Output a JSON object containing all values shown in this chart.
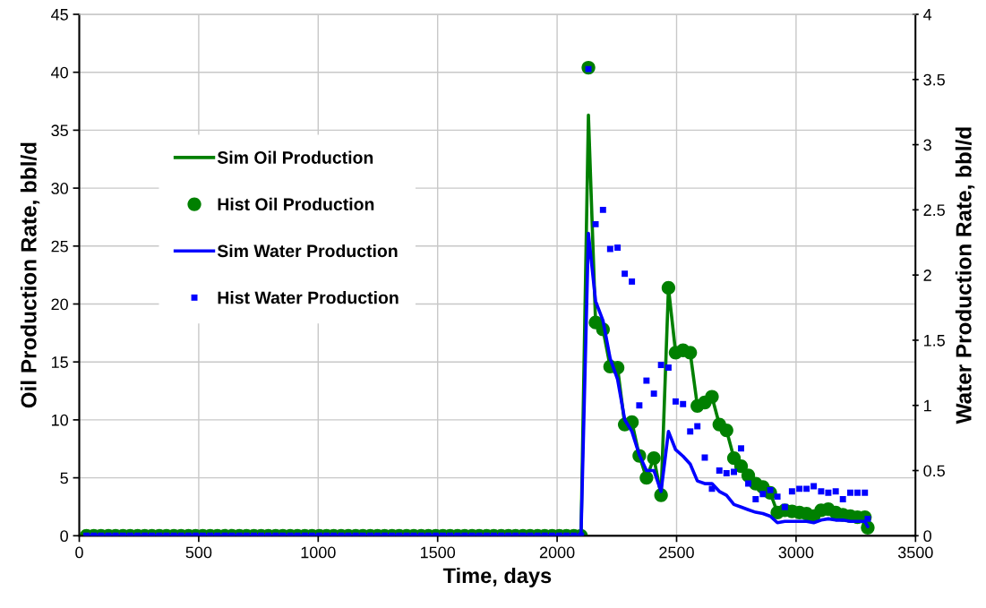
{
  "chart_data": {
    "type": "line",
    "xlabel": "Time, days",
    "ylabel": "Oil Production Rate, bbl/d",
    "y2label": "Water Production Rate, bbl/d",
    "x": [
      30,
      61,
      91,
      122,
      152,
      183,
      213,
      244,
      274,
      304,
      335,
      365,
      396,
      426,
      457,
      487,
      517,
      548,
      578,
      609,
      639,
      670,
      700,
      731,
      761,
      791,
      822,
      852,
      883,
      913,
      944,
      974,
      1005,
      1035,
      1065,
      1096,
      1126,
      1157,
      1187,
      1218,
      1248,
      1278,
      1309,
      1339,
      1370,
      1400,
      1431,
      1461,
      1492,
      1522,
      1552,
      1583,
      1613,
      1644,
      1674,
      1705,
      1735,
      1766,
      1796,
      1826,
      1857,
      1887,
      1918,
      1948,
      1979,
      2009,
      2039,
      2070,
      2100,
      2131,
      2161,
      2192,
      2222,
      2253,
      2283,
      2313,
      2344,
      2374,
      2405,
      2435,
      2466,
      2496,
      2527,
      2557,
      2587,
      2618,
      2648,
      2679,
      2709,
      2740,
      2770,
      2800,
      2831,
      2861,
      2892,
      2922,
      2953,
      2983,
      3014,
      3044,
      3074,
      3105,
      3135,
      3166,
      3196,
      3227,
      3257,
      3288,
      3300
    ],
    "xlim": [
      0,
      3500
    ],
    "xticks": [
      0,
      500,
      1000,
      1500,
      2000,
      2500,
      3000,
      3500
    ],
    "ylim": [
      0,
      45
    ],
    "yticks": [
      0,
      5,
      10,
      15,
      20,
      25,
      30,
      35,
      40,
      45
    ],
    "y2lim": [
      0,
      4
    ],
    "y2ticks": [
      0,
      0.5,
      1,
      1.5,
      2,
      2.5,
      3,
      3.5,
      4
    ],
    "grid": true,
    "legend": "top left",
    "series": [
      {
        "name": "Sim Oil Production",
        "color": "#008000",
        "marker": "none",
        "line_style": "solid",
        "values": [
          0,
          0,
          0,
          0,
          0,
          0,
          0,
          0,
          0,
          0,
          0,
          0,
          0,
          0,
          0,
          0,
          0,
          0,
          0,
          0,
          0,
          0,
          0,
          0,
          0,
          0,
          0,
          0,
          0,
          0,
          0,
          0,
          0,
          0,
          0,
          0,
          0,
          0,
          0,
          0,
          0,
          0,
          0,
          0,
          0,
          0,
          0,
          0,
          0,
          0,
          0,
          0,
          0,
          0,
          0,
          0,
          0,
          0,
          0,
          0,
          0,
          0,
          0,
          0,
          0,
          0,
          0,
          0,
          0,
          36.3,
          18.4,
          17.8,
          14.6,
          14.5,
          9.6,
          9.8,
          6.9,
          5.0,
          6.7,
          3.5,
          21.4,
          15.8,
          16.0,
          15.8,
          11.2,
          11.5,
          12.0,
          9.6,
          9.1,
          6.7,
          6.0,
          5.2,
          4.5,
          4.2,
          3.7,
          2.0,
          2.2,
          2.1,
          2.0,
          1.9,
          1.7,
          2.2,
          2.3,
          2.0,
          1.8,
          1.7,
          1.6,
          1.6,
          0.7
        ]
      },
      {
        "name": "Hist Oil Production",
        "type": "scatter",
        "color": "#008000",
        "marker": "circle",
        "values": [
          0,
          0,
          0,
          0,
          0,
          0,
          0,
          0,
          0,
          0,
          0,
          0,
          0,
          0,
          0,
          0,
          0,
          0,
          0,
          0,
          0,
          0,
          0,
          0,
          0,
          0,
          0,
          0,
          0,
          0,
          0,
          0,
          0,
          0,
          0,
          0,
          0,
          0,
          0,
          0,
          0,
          0,
          0,
          0,
          0,
          0,
          0,
          0,
          0,
          0,
          0,
          0,
          0,
          0,
          0,
          0,
          0,
          0,
          0,
          0,
          0,
          0,
          0,
          0,
          0,
          0,
          0,
          0,
          0,
          40.4,
          18.4,
          17.8,
          14.6,
          14.5,
          9.6,
          9.8,
          6.9,
          5.0,
          6.7,
          3.5,
          21.4,
          15.8,
          16.0,
          15.8,
          11.2,
          11.5,
          12.0,
          9.6,
          9.1,
          6.7,
          6.0,
          5.2,
          4.5,
          4.2,
          3.7,
          2.0,
          2.2,
          2.1,
          2.0,
          1.9,
          1.7,
          2.2,
          2.3,
          2.0,
          1.8,
          1.7,
          1.6,
          1.6,
          0.7
        ]
      },
      {
        "name": "Sim Water Production",
        "axis": "y2",
        "color": "#0000ff",
        "marker": "none",
        "line_style": "solid",
        "values": [
          0,
          0,
          0,
          0,
          0,
          0,
          0,
          0,
          0,
          0,
          0,
          0,
          0,
          0,
          0,
          0,
          0,
          0,
          0,
          0,
          0,
          0,
          0,
          0,
          0,
          0,
          0,
          0,
          0,
          0,
          0,
          0,
          0,
          0,
          0,
          0,
          0,
          0,
          0,
          0,
          0,
          0,
          0,
          0,
          0,
          0,
          0,
          0,
          0,
          0,
          0,
          0,
          0,
          0,
          0,
          0,
          0,
          0,
          0,
          0,
          0,
          0,
          0,
          0,
          0,
          0,
          0,
          0,
          0,
          2.32,
          1.8,
          1.65,
          1.36,
          1.2,
          0.89,
          0.8,
          0.62,
          0.5,
          0.5,
          0.34,
          0.8,
          0.66,
          0.61,
          0.55,
          0.42,
          0.4,
          0.4,
          0.34,
          0.31,
          0.24,
          0.22,
          0.2,
          0.18,
          0.17,
          0.15,
          0.1,
          0.11,
          0.11,
          0.11,
          0.11,
          0.1,
          0.12,
          0.13,
          0.12,
          0.12,
          0.11,
          0.11,
          0.11,
          0.07
        ]
      },
      {
        "name": "Hist Water Production",
        "type": "scatter",
        "axis": "y2",
        "color": "#0000ff",
        "marker": "square",
        "values": [
          0,
          0,
          0,
          0,
          0,
          0,
          0,
          0,
          0,
          0,
          0,
          0,
          0,
          0,
          0,
          0,
          0,
          0,
          0,
          0,
          0,
          0,
          0,
          0,
          0,
          0,
          0,
          0,
          0,
          0,
          0,
          0,
          0,
          0,
          0,
          0,
          0,
          0,
          0,
          0,
          0,
          0,
          0,
          0,
          0,
          0,
          0,
          0,
          0,
          0,
          0,
          0,
          0,
          0,
          0,
          0,
          0,
          0,
          0,
          0,
          0,
          0,
          0,
          0,
          0,
          0,
          0,
          0,
          0,
          3.58,
          2.39,
          2.5,
          2.2,
          2.21,
          2.01,
          1.95,
          1.0,
          1.19,
          1.09,
          1.31,
          1.29,
          1.03,
          1.01,
          0.8,
          0.84,
          0.6,
          0.36,
          0.5,
          0.48,
          0.49,
          0.67,
          0.4,
          0.28,
          0.32,
          0.35,
          0.3,
          0.22,
          0.34,
          0.36,
          0.36,
          0.38,
          0.34,
          0.33,
          0.34,
          0.28,
          0.33,
          0.33,
          0.33,
          0.13
        ]
      }
    ]
  }
}
